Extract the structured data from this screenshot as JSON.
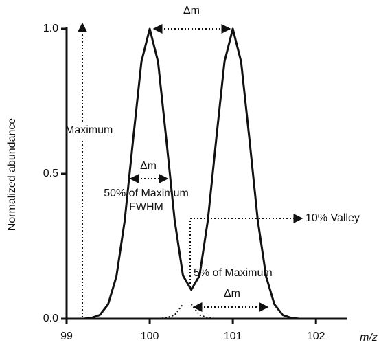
{
  "chart_data": {
    "type": "line",
    "x": [
      99.0,
      99.1,
      99.2,
      99.3,
      99.4,
      99.5,
      99.6,
      99.7,
      99.8,
      99.9,
      100.0,
      100.1,
      100.2,
      100.3,
      100.4,
      100.5,
      100.6,
      100.7,
      100.8,
      100.9,
      101.0,
      101.1,
      101.2,
      101.3,
      101.4,
      101.5,
      101.6,
      101.7,
      101.8,
      101.9,
      102.0,
      102.1,
      102.2
    ],
    "series": [
      {
        "color": "#111111",
        "style": "solid",
        "values": [
          0,
          0,
          0,
          0.003,
          0.013,
          0.05,
          0.146,
          0.339,
          0.618,
          0.887,
          1.0,
          0.887,
          0.618,
          0.34,
          0.149,
          0.1,
          0.149,
          0.34,
          0.618,
          0.887,
          1.0,
          0.887,
          0.618,
          0.339,
          0.146,
          0.05,
          0.013,
          0.003,
          0,
          0,
          0,
          0,
          0
        ]
      },
      {
        "color": "#111111",
        "style": "dotted",
        "values": [
          null,
          null,
          null,
          null,
          null,
          null,
          null,
          null,
          null,
          null,
          null,
          null,
          null,
          null,
          null,
          0.05,
          0.013,
          0.003,
          0.0005,
          0,
          0,
          null,
          null,
          null,
          null,
          null,
          null,
          null,
          null,
          null,
          null,
          null,
          null
        ]
      },
      {
        "color": "#111111",
        "style": "dotted",
        "values": [
          null,
          null,
          null,
          null,
          null,
          null,
          null,
          null,
          null,
          0,
          0,
          0.0005,
          0.003,
          0.013,
          0.05,
          null,
          null,
          null,
          null,
          null,
          null,
          null,
          null,
          null,
          null,
          null,
          null,
          null,
          null,
          null,
          null,
          null,
          null
        ]
      }
    ],
    "xlabel": "m/z",
    "ylabel": "Normalized abundance",
    "xlim": [
      99,
      102.37
    ],
    "xticks": [
      99,
      100,
      101,
      102
    ],
    "ylim": [
      0,
      1.0
    ],
    "yticks": [
      {
        "value": 0,
        "label": "0.0"
      },
      0.5,
      {
        "value": 1.0,
        "label": "1.0"
      }
    ],
    "annotations": {
      "maximum": "Maximum",
      "delta_top": "Δm",
      "delta_mid": "Δm",
      "half": "50% of Maximum",
      "fwhm": "FWHM",
      "valley": "10% Valley",
      "five": "5% of Maximum",
      "delta_bottom": "Δm"
    }
  }
}
